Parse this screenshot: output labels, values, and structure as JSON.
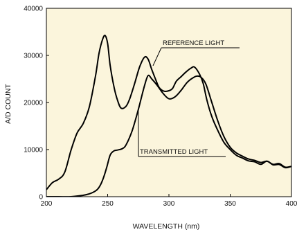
{
  "chart_data": {
    "type": "line",
    "title": "",
    "xlabel": "WAVELENGTH (nm)",
    "ylabel": "A/D COUNT",
    "xlim": [
      200,
      400
    ],
    "ylim": [
      0,
      40000
    ],
    "x_ticks": [
      200,
      250,
      300,
      350,
      400
    ],
    "y_ticks": [
      0,
      10000,
      20000,
      30000,
      40000
    ],
    "grid": false,
    "background_color": "#fbf5dc",
    "line_color": "#000000",
    "series": [
      {
        "name": "REFERENCE LIGHT",
        "x": [
          200,
          205,
          210,
          215,
          220,
          225,
          230,
          235,
          240,
          243,
          246,
          248,
          250,
          252,
          255,
          258,
          261,
          265,
          268,
          272,
          276,
          280,
          283,
          286,
          289,
          292,
          296,
          300,
          303,
          306,
          310,
          314,
          318,
          321,
          325,
          328,
          331,
          335,
          340,
          345,
          350,
          355,
          360,
          365,
          370,
          375,
          380,
          385,
          390,
          395,
          400
        ],
        "y": [
          1500,
          3000,
          3700,
          5200,
          9800,
          13500,
          15500,
          19000,
          25500,
          30500,
          33500,
          34200,
          32500,
          28000,
          23500,
          20500,
          18800,
          19200,
          20800,
          24000,
          27500,
          29600,
          29200,
          27000,
          25000,
          23200,
          22400,
          22500,
          23000,
          24500,
          25500,
          26500,
          27300,
          27500,
          26000,
          24000,
          20500,
          17000,
          14000,
          11500,
          10000,
          8800,
          8200,
          7600,
          7400,
          7100,
          7300,
          7000,
          6600,
          6400,
          6200
        ]
      },
      {
        "name": "TRANSMITTED LIGHT",
        "x": [
          200,
          210,
          220,
          230,
          235,
          240,
          243,
          246,
          249,
          252,
          255,
          258,
          262,
          265,
          270,
          275,
          280,
          283,
          286,
          290,
          295,
          300,
          305,
          310,
          315,
          320,
          323,
          326,
          330,
          335,
          340,
          345,
          350,
          355,
          360,
          365,
          370,
          375,
          380,
          385,
          390,
          395,
          400
        ],
        "y": [
          0,
          0,
          0,
          300,
          600,
          1200,
          2000,
          3600,
          6000,
          8800,
          9700,
          9900,
          10200,
          11000,
          14000,
          18500,
          23500,
          25700,
          25000,
          23800,
          22000,
          20800,
          21200,
          22600,
          24300,
          25300,
          25600,
          25400,
          24000,
          20000,
          16000,
          12700,
          10500,
          9300,
          8600,
          8000,
          7700,
          7500,
          7300,
          7100,
          6800,
          6500,
          6200
        ]
      }
    ],
    "annotations": [
      {
        "text": "REFERENCE LIGHT",
        "series": "REFERENCE LIGHT"
      },
      {
        "text": "TRANSMITTED LIGHT",
        "series": "TRANSMITTED LIGHT"
      }
    ]
  }
}
